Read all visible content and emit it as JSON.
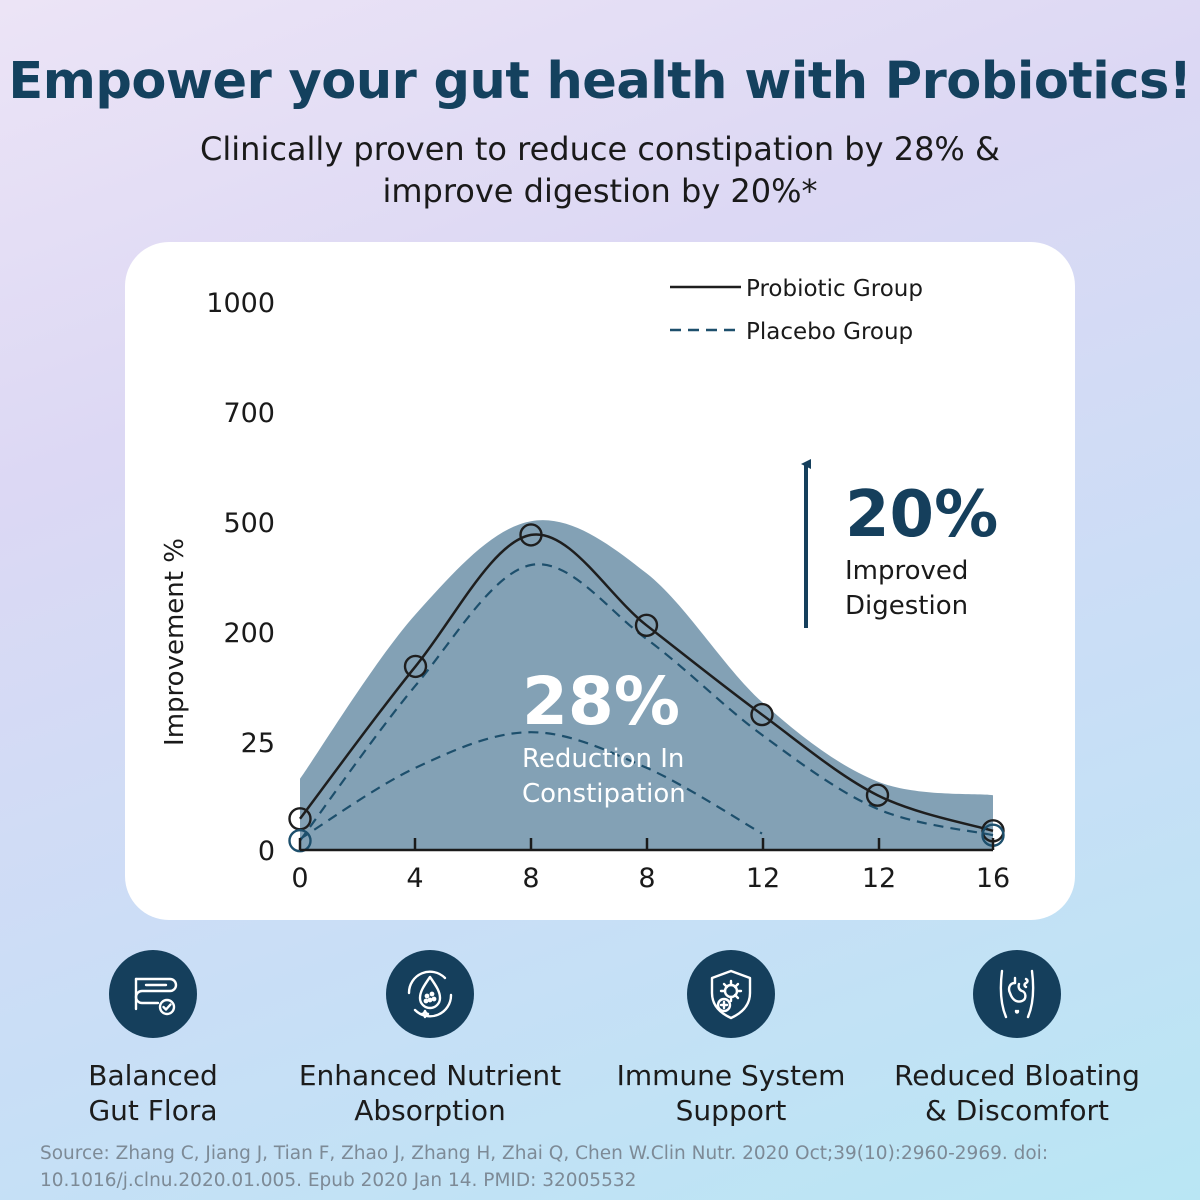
{
  "header": {
    "title": "Empower your gut health with Probiotics!",
    "subtitle": "Clinically proven to reduce constipation by 28% & improve digestion by 20%*"
  },
  "chart_data": {
    "type": "line",
    "ylabel": "Improvement %",
    "x_ticks": [
      "0",
      "4",
      "8",
      "8",
      "12",
      "12",
      "16"
    ],
    "y_ticks": [
      "1000",
      "700",
      "500",
      "200",
      "25",
      "0"
    ],
    "legend_position": "top-right",
    "series": [
      {
        "name": "Probiotic Group",
        "style": "solid",
        "color": "#1e1e1e",
        "points": [
          [
            0,
            57
          ],
          [
            2,
            335
          ],
          [
            4,
            575
          ],
          [
            6,
            410
          ],
          [
            8,
            247
          ],
          [
            10,
            100
          ],
          [
            12,
            35
          ]
        ],
        "markers": [
          [
            0,
            57
          ],
          [
            2,
            335
          ],
          [
            4,
            575
          ],
          [
            6,
            410
          ],
          [
            8,
            247
          ],
          [
            10,
            100
          ],
          [
            12,
            35
          ]
        ]
      },
      {
        "name": "Placebo Group",
        "style": "dashed",
        "color": "#1d4f6c",
        "points": [
          [
            0,
            17
          ],
          [
            2,
            300
          ],
          [
            4,
            520
          ],
          [
            6,
            385
          ],
          [
            8,
            210
          ],
          [
            10,
            75
          ],
          [
            12,
            27
          ]
        ],
        "markers": [
          [
            0,
            17
          ],
          [
            12,
            27
          ]
        ]
      },
      {
        "name": "",
        "style": "dashed",
        "color": "#1d4f6c",
        "points": [
          [
            0,
            20
          ],
          [
            2,
            150
          ],
          [
            4,
            215
          ],
          [
            6,
            150
          ],
          [
            8,
            30
          ]
        ]
      }
    ],
    "band": {
      "color": "#83a1b5",
      "upper": [
        [
          0,
          130
        ],
        [
          2,
          430
        ],
        [
          4,
          600
        ],
        [
          6,
          505
        ],
        [
          8,
          270
        ],
        [
          10,
          125
        ],
        [
          12,
          100
        ]
      ]
    },
    "annotations": [
      {
        "value": "28%",
        "label": "Reduction In Constipation"
      },
      {
        "value": "20%",
        "label": "Improved Digestion"
      }
    ]
  },
  "features": [
    {
      "label": "Balanced Gut Flora",
      "icon": "intestine-check-icon"
    },
    {
      "label": "Enhanced Nutrient Absorption",
      "icon": "nutrient-droplet-icon"
    },
    {
      "label": "Immune System Support",
      "icon": "immune-shield-icon"
    },
    {
      "label": "Reduced Bloating & Discomfort",
      "icon": "stomach-icon"
    }
  ],
  "source": "Source: Zhang C, Jiang J, Tian F, Zhao J, Zhang H, Zhai Q, Chen W.Clin Nutr. 2020 Oct;39(10):2960-2969. doi: 10.1016/j.clnu.2020.01.005. Epub 2020 Jan 14. PMID: 32005532",
  "colors": {
    "title": "#14415e",
    "icon_bg": "#153f5c",
    "band": "#83a1b5"
  }
}
